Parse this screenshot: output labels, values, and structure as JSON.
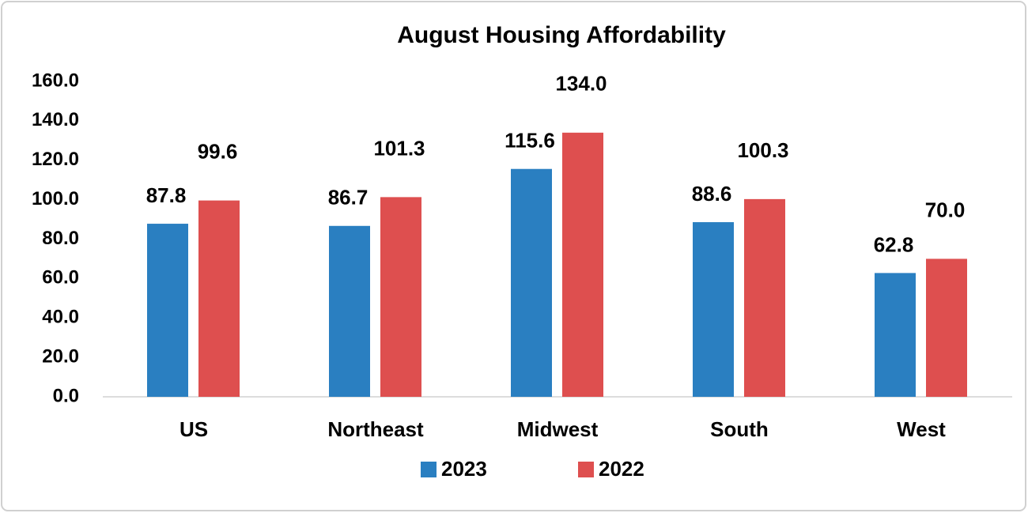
{
  "chart_data": {
    "type": "bar",
    "title": "August Housing Affordability",
    "categories": [
      "US",
      "Northeast",
      "Midwest",
      "South",
      "West"
    ],
    "series": [
      {
        "name": "2023",
        "color": "#2a7fc1",
        "values": [
          87.8,
          86.7,
          115.6,
          88.6,
          62.8
        ],
        "value_labels": [
          "87.8",
          "86.7",
          "115.6",
          "88.6",
          "62.8"
        ]
      },
      {
        "name": "2022",
        "color": "#de4f4f",
        "values": [
          99.6,
          101.3,
          134.0,
          100.3,
          70.0
        ],
        "value_labels": [
          "99.6",
          "101.3",
          "134.0",
          "100.3",
          "70.0"
        ]
      }
    ],
    "ylim": [
      0,
      160
    ],
    "yticks": [
      {
        "value": 0,
        "label": "0.0"
      },
      {
        "value": 20,
        "label": "20.0"
      },
      {
        "value": 40,
        "label": "40.0"
      },
      {
        "value": 60,
        "label": "60.0"
      },
      {
        "value": 80,
        "label": "80.0"
      },
      {
        "value": 100,
        "label": "100.0"
      },
      {
        "value": 120,
        "label": "120.0"
      },
      {
        "value": 140,
        "label": "140.0"
      },
      {
        "value": 160,
        "label": "160.0"
      }
    ],
    "grid": false,
    "legend": "bottom"
  }
}
